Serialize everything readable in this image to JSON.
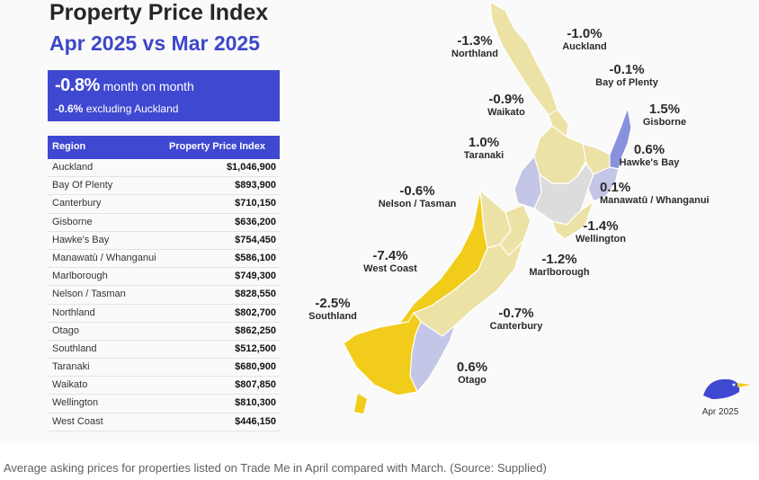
{
  "title": "Property Price Index",
  "subtitle": "Apr 2025 vs Mar 2025",
  "summary": {
    "headline_value": "-0.8%",
    "headline_text": "month on month",
    "sub_value": "-0.6%",
    "sub_text": "excluding Auckland"
  },
  "table": {
    "col_region": "Region",
    "col_index": "Property Price Index",
    "rows": [
      {
        "region": "Auckland",
        "value": "$1,046,900"
      },
      {
        "region": "Bay Of Plenty",
        "value": "$893,900"
      },
      {
        "region": "Canterbury",
        "value": "$710,150"
      },
      {
        "region": "Gisborne",
        "value": "$636,200"
      },
      {
        "region": "Hawke's Bay",
        "value": "$754,450"
      },
      {
        "region": "Manawatū / Whanganui",
        "value": "$586,100"
      },
      {
        "region": "Marlborough",
        "value": "$749,300"
      },
      {
        "region": "Nelson / Tasman",
        "value": "$828,550"
      },
      {
        "region": "Northland",
        "value": "$802,700"
      },
      {
        "region": "Otago",
        "value": "$862,250"
      },
      {
        "region": "Southland",
        "value": "$512,500"
      },
      {
        "region": "Taranaki",
        "value": "$680,900"
      },
      {
        "region": "Waikato",
        "value": "$807,850"
      },
      {
        "region": "Wellington",
        "value": "$810,300"
      },
      {
        "region": "West Coast",
        "value": "$446,150"
      }
    ]
  },
  "map_date": "Apr 2025",
  "caption": "Average asking prices for properties listed on Trade Me in April compared with March. (Source: Supplied)",
  "colors": {
    "accent": "#3f48d0",
    "strong_decline": "#f2cc1a",
    "mild_decline": "#ece2a6",
    "flat": "#dcdcdc",
    "mild_rise": "#c3c6e6",
    "strong_rise": "#8892dc"
  },
  "icons": [
    "kiwi-bird-icon"
  ],
  "chart_data": {
    "type": "choropleth-map",
    "metric": "month on month change (%)",
    "regions": [
      {
        "name": "Northland",
        "change": -1.3,
        "label": "-1.3%"
      },
      {
        "name": "Auckland",
        "change": -1.0,
        "label": "-1.0%"
      },
      {
        "name": "Bay of Plenty",
        "change": -0.1,
        "label": "-0.1%"
      },
      {
        "name": "Waikato",
        "change": -0.9,
        "label": "-0.9%"
      },
      {
        "name": "Gisborne",
        "change": 1.5,
        "label": "1.5%"
      },
      {
        "name": "Taranaki",
        "change": 1.0,
        "label": "1.0%"
      },
      {
        "name": "Hawke's Bay",
        "change": 0.6,
        "label": "0.6%"
      },
      {
        "name": "Manawatū / Whanganui",
        "change": 0.1,
        "label": "0.1%"
      },
      {
        "name": "Nelson / Tasman",
        "change": -0.6,
        "label": "-0.6%"
      },
      {
        "name": "Wellington",
        "change": -1.4,
        "label": "-1.4%"
      },
      {
        "name": "West Coast",
        "change": -7.4,
        "label": "-7.4%"
      },
      {
        "name": "Marlborough",
        "change": -1.2,
        "label": "-1.2%"
      },
      {
        "name": "Southland",
        "change": -2.5,
        "label": "-2.5%"
      },
      {
        "name": "Canterbury",
        "change": -0.7,
        "label": "-0.7%"
      },
      {
        "name": "Otago",
        "change": 0.6,
        "label": "0.6%"
      }
    ]
  }
}
